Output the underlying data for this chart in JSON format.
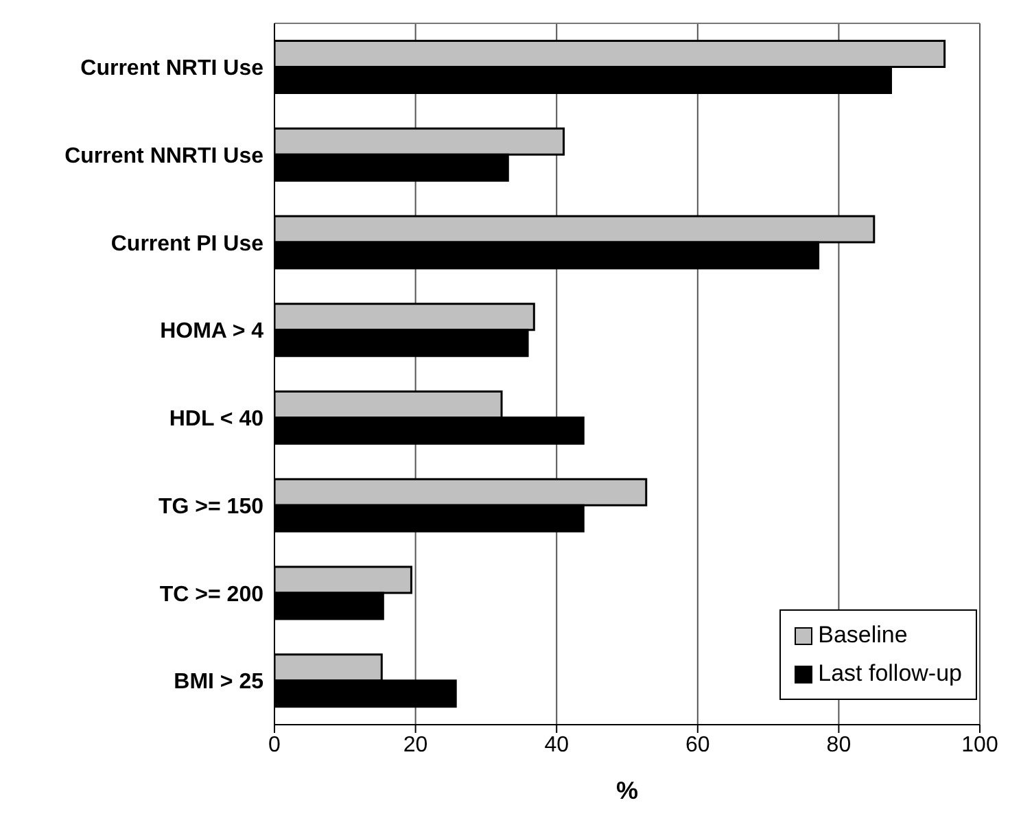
{
  "chart_data": {
    "type": "bar",
    "orientation": "horizontal",
    "xlabel": "%",
    "categories": [
      "Current NRTI Use",
      "Current NNRTI Use",
      "Current PI Use",
      "HOMA > 4",
      "HDL < 40",
      "TG >= 150",
      "TC >= 200",
      "BMI > 25"
    ],
    "series": [
      {
        "name": "Baseline",
        "color": "#c0c0c0",
        "values": [
          95,
          41,
          85,
          36.8,
          32.2,
          52.7,
          19.4,
          15.2
        ]
      },
      {
        "name": "Last follow-up",
        "color": "#000000",
        "values": [
          87.4,
          33.1,
          77.1,
          35.9,
          43.8,
          43.8,
          15.4,
          25.7
        ]
      }
    ],
    "xlim": [
      0,
      100
    ],
    "xticks": [
      0,
      20,
      40,
      60,
      80,
      100
    ],
    "grid": "x",
    "legend": "bottom right"
  }
}
